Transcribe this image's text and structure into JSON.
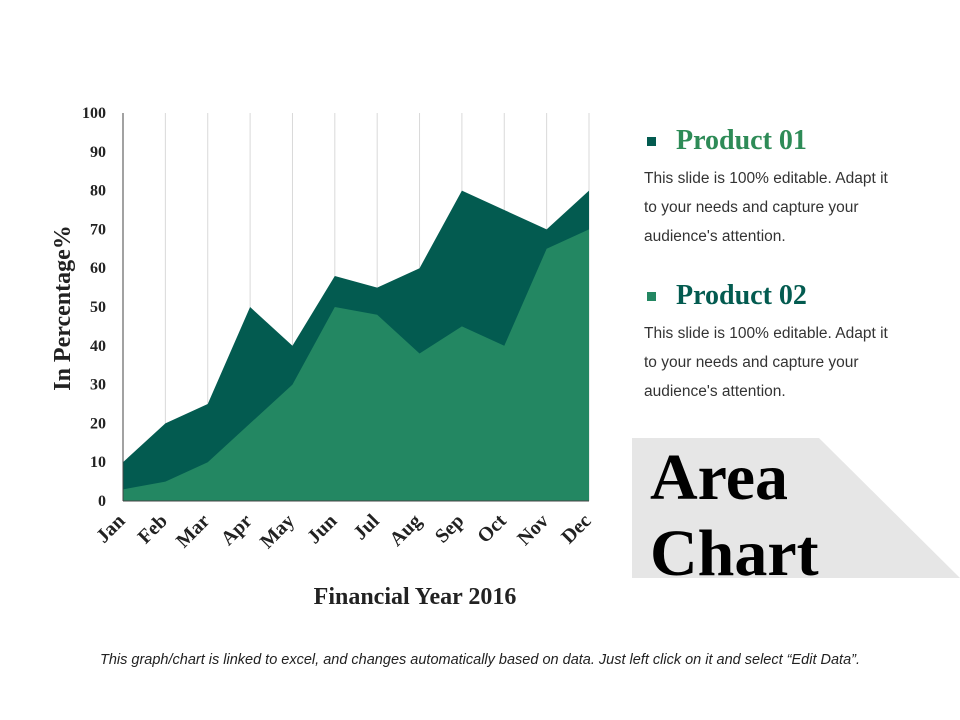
{
  "chart_data": {
    "type": "area",
    "stacked": false,
    "categories": [
      "Jan",
      "Feb",
      "Mar",
      "Apr",
      "May",
      "Jun",
      "Jul",
      "Aug",
      "Sep",
      "Oct",
      "Nov",
      "Dec"
    ],
    "series": [
      {
        "name": "Product 01",
        "color": "#035b50",
        "values": [
          10,
          20,
          25,
          50,
          40,
          58,
          55,
          60,
          80,
          75,
          70,
          80
        ]
      },
      {
        "name": "Product 02",
        "color": "#238762",
        "values": [
          3,
          5,
          10,
          20,
          30,
          50,
          48,
          38,
          45,
          40,
          65,
          70
        ]
      }
    ],
    "ylim": [
      0,
      100
    ],
    "yticks": [
      0,
      10,
      20,
      30,
      40,
      50,
      60,
      70,
      80,
      90,
      100
    ],
    "ylabel": "In Percentage%",
    "xlabel": "Financial Year 2016",
    "grid": "vertical"
  },
  "legend": [
    {
      "title": "Product 01",
      "color": "#2e8b57",
      "bullet_color": "#035b50",
      "description": "This slide is 100% editable. Adapt it to your needs and capture your audience's attention."
    },
    {
      "title": "Product 02",
      "color": "#035b50",
      "bullet_color": "#238762",
      "description": "This slide is 100% editable. Adapt it to your needs and capture your audience's attention."
    }
  ],
  "title": {
    "line1": "Area",
    "line2": "Chart"
  },
  "footer": "This graph/chart is linked to excel, and changes automatically based on data. Just left click on it and select “Edit Data”."
}
